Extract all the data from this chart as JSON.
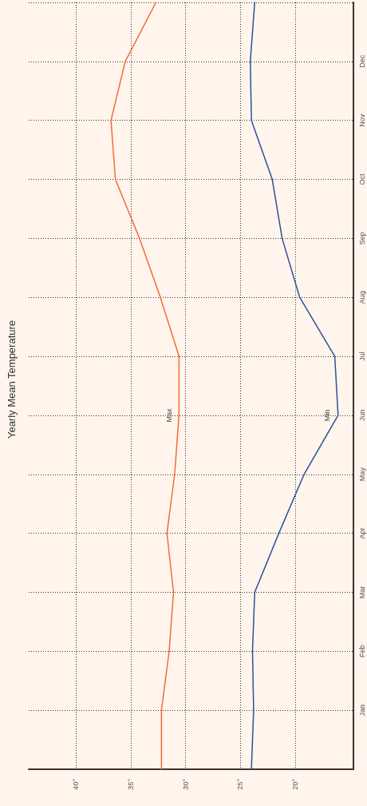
{
  "chart_data": {
    "type": "line",
    "title": "Yearly Mean Temperature",
    "orientation": "horizontal",
    "categories": [
      null,
      "Dec",
      "Nov",
      "Oct",
      "Sep",
      "Aug",
      "Jul",
      "Jun",
      "May",
      "Apr",
      "Mar",
      "Feb",
      "Jan",
      null
    ],
    "xlim": [
      44.3,
      14.7
    ],
    "xticks": [
      {
        "value": 40,
        "label": "40°"
      },
      {
        "value": 35,
        "label": "35°"
      },
      {
        "value": 30,
        "label": "30°"
      },
      {
        "value": 25,
        "label": "25°"
      },
      {
        "value": 20,
        "label": "20°"
      }
    ],
    "grid": true,
    "marker": "none",
    "line_style": "solid",
    "series": [
      {
        "color": "#f26b3a",
        "values": [
          32.7,
          35.5,
          36.8,
          36.4,
          34.2,
          32.3,
          30.6,
          30.6,
          31.0,
          31.7,
          31.1,
          31.5,
          32.2,
          32.2
        ]
      },
      {
        "color": "#2d4f9e",
        "values": [
          23.7,
          24.1,
          24.0,
          22.1,
          21.2,
          19.6,
          16.4,
          16.1,
          19.2,
          21.5,
          23.7,
          23.9,
          23.8,
          24.0
        ]
      }
    ],
    "annotations": [
      "Max",
      "Min"
    ]
  }
}
